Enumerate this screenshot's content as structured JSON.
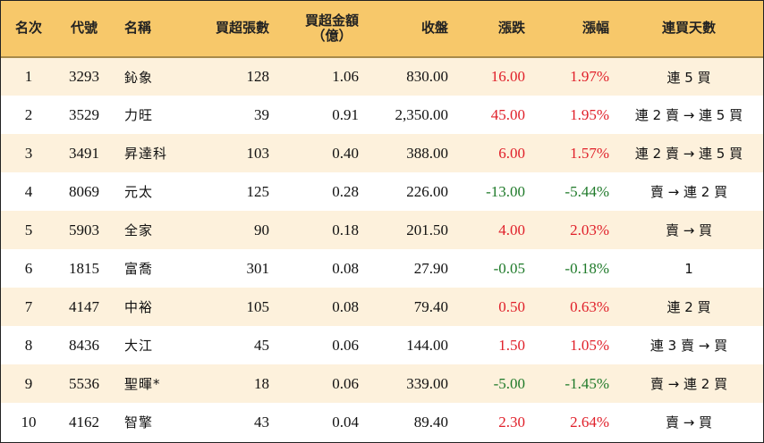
{
  "header": {
    "rank": "名次",
    "code": "代號",
    "name": "名稱",
    "net_buy_lots": "買超張數",
    "net_buy_amount_line1": "買超金額",
    "net_buy_amount_line2": "（億）",
    "close": "收盤",
    "change": "漲跌",
    "change_pct": "漲幅",
    "consecutive_days": "連買天數"
  },
  "colors": {
    "header_bg": "#f7c86a",
    "stripe_bg": "#fdf1dc",
    "up": "#e0202a",
    "down": "#1f7a2a"
  },
  "rows": [
    {
      "rank": "1",
      "code": "3293",
      "name": "鈊象",
      "lots": "128",
      "amount": "1.06",
      "close": "830.00",
      "change": "16.00",
      "pct": "1.97%",
      "days": "連 5 買",
      "trend": "up"
    },
    {
      "rank": "2",
      "code": "3529",
      "name": "力旺",
      "lots": "39",
      "amount": "0.91",
      "close": "2,350.00",
      "change": "45.00",
      "pct": "1.95%",
      "days": "連 2 賣 → 連 5 買",
      "trend": "up"
    },
    {
      "rank": "3",
      "code": "3491",
      "name": "昇達科",
      "lots": "103",
      "amount": "0.40",
      "close": "388.00",
      "change": "6.00",
      "pct": "1.57%",
      "days": "連 2 賣 → 連 5 買",
      "trend": "up"
    },
    {
      "rank": "4",
      "code": "8069",
      "name": "元太",
      "lots": "125",
      "amount": "0.28",
      "close": "226.00",
      "change": "-13.00",
      "pct": "-5.44%",
      "days": "賣 → 連 2 買",
      "trend": "down"
    },
    {
      "rank": "5",
      "code": "5903",
      "name": "全家",
      "lots": "90",
      "amount": "0.18",
      "close": "201.50",
      "change": "4.00",
      "pct": "2.03%",
      "days": "賣 → 買",
      "trend": "up"
    },
    {
      "rank": "6",
      "code": "1815",
      "name": "富喬",
      "lots": "301",
      "amount": "0.08",
      "close": "27.90",
      "change": "-0.05",
      "pct": "-0.18%",
      "days": "1",
      "trend": "down"
    },
    {
      "rank": "7",
      "code": "4147",
      "name": "中裕",
      "lots": "105",
      "amount": "0.08",
      "close": "79.40",
      "change": "0.50",
      "pct": "0.63%",
      "days": "連 2 買",
      "trend": "up"
    },
    {
      "rank": "8",
      "code": "8436",
      "name": "大江",
      "lots": "45",
      "amount": "0.06",
      "close": "144.00",
      "change": "1.50",
      "pct": "1.05%",
      "days": "連 3 賣 → 買",
      "trend": "up"
    },
    {
      "rank": "9",
      "code": "5536",
      "name": "聖暉*",
      "lots": "18",
      "amount": "0.06",
      "close": "339.00",
      "change": "-5.00",
      "pct": "-1.45%",
      "days": "賣 → 連 2 買",
      "trend": "down"
    },
    {
      "rank": "10",
      "code": "4162",
      "name": "智擎",
      "lots": "43",
      "amount": "0.04",
      "close": "89.40",
      "change": "2.30",
      "pct": "2.64%",
      "days": "賣 → 買",
      "trend": "up"
    }
  ]
}
